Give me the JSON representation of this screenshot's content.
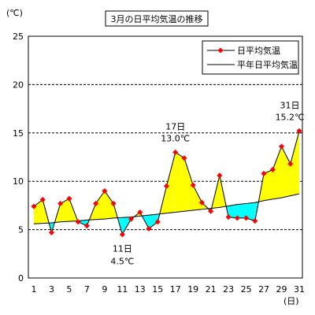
{
  "chart_data": {
    "type": "line",
    "title": "3月の日平均気温の推移",
    "y_unit_label": "(℃)",
    "x_unit_label": "(日)",
    "x": [
      1,
      2,
      3,
      4,
      5,
      6,
      7,
      8,
      9,
      10,
      11,
      12,
      13,
      14,
      15,
      16,
      17,
      18,
      19,
      20,
      21,
      22,
      23,
      24,
      25,
      26,
      27,
      28,
      29,
      30,
      31
    ],
    "x_tick_labels": [
      "1",
      "3",
      "5",
      "7",
      "9",
      "11",
      "13",
      "15",
      "17",
      "19",
      "21",
      "23",
      "25",
      "27",
      "29",
      "31"
    ],
    "ylim": [
      0,
      25
    ],
    "y_ticks": [
      "0",
      "5",
      "10",
      "15",
      "20",
      "25"
    ],
    "grid": "horizontal dashed",
    "legend_position": "top-right",
    "series": [
      {
        "name": "日平均気温",
        "color": "#ff0000",
        "values": [
          7.4,
          8.1,
          4.7,
          7.7,
          8.2,
          5.8,
          5.4,
          7.7,
          9.0,
          7.7,
          4.5,
          6.1,
          6.8,
          5.1,
          5.8,
          9.5,
          13.0,
          12.4,
          9.6,
          7.8,
          6.9,
          10.6,
          6.3,
          6.2,
          6.2,
          5.9,
          10.8,
          11.2,
          13.6,
          11.8,
          15.2
        ]
      },
      {
        "name": "平年日平均気温",
        "color": "#000000",
        "values": [
          5.6,
          5.65,
          5.7,
          5.8,
          5.85,
          5.9,
          6.0,
          6.05,
          6.1,
          6.2,
          6.25,
          6.3,
          6.4,
          6.5,
          6.6,
          6.7,
          6.8,
          6.9,
          7.0,
          7.1,
          7.2,
          7.3,
          7.45,
          7.6,
          7.7,
          7.8,
          8.0,
          8.15,
          8.3,
          8.5,
          8.7
        ]
      }
    ],
    "fill_above_color": "#ffff00",
    "fill_below_color": "#00ffff",
    "annotations": [
      {
        "day": 17,
        "line1": "17日",
        "line2": "13.0℃"
      },
      {
        "day": 11,
        "line1": "11日",
        "line2": "4.5℃"
      },
      {
        "day": 31,
        "line1": "31日",
        "line2": "15.2℃"
      }
    ]
  }
}
